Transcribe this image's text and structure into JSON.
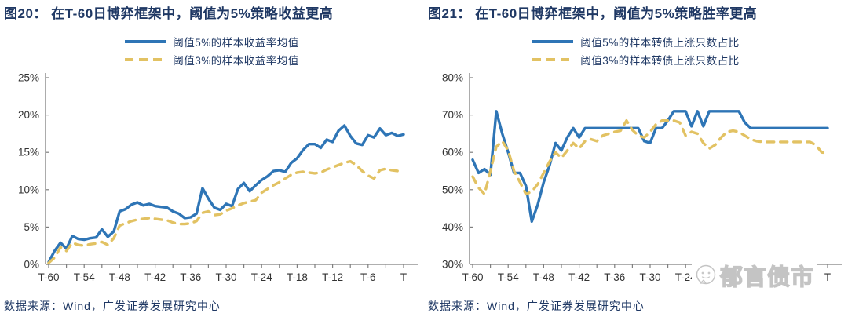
{
  "colors": {
    "navy": "#1F3864",
    "blue": "#2E75B6",
    "gold": "#E2C263",
    "axis": "#7F7F7F",
    "tick_text": "#333333",
    "watermark_gray": "#C4C4C4"
  },
  "panels": [
    {
      "title": "图20： 在T-60日博弈框架中，阈值为5%策略收益更高",
      "source": "数据来源：Wind，广发证券发展研究中心",
      "chart_data": {
        "type": "line",
        "title": "在T-60日博弈框架中，阈值为5%策略收益更高",
        "x_points": 61,
        "x_range": [
          "T-60",
          "T"
        ],
        "x_tick_labels": [
          "T-60",
          "T-54",
          "T-48",
          "T-42",
          "T-36",
          "T-30",
          "T-24",
          "T-18",
          "T-12",
          "T-6",
          "T"
        ],
        "ylim": [
          0,
          25
        ],
        "y_tick_step": 5,
        "y_tick_labels": [
          "0%",
          "5%",
          "10%",
          "15%",
          "20%",
          "25%"
        ],
        "grid": false,
        "legend_position": "top",
        "series": [
          {
            "name": "阈值5%的样本收益率均值",
            "style": "solid",
            "color": "#2E75B6",
            "unit": "%",
            "values": [
              0.3,
              1.8,
              2.9,
              2.1,
              3.8,
              3.4,
              3.3,
              3.5,
              3.6,
              4.7,
              3.7,
              4.4,
              7.1,
              7.4,
              8.0,
              8.3,
              7.9,
              8.1,
              7.8,
              7.7,
              7.6,
              7.1,
              6.8,
              6.2,
              6.3,
              6.8,
              10.2,
              8.8,
              7.6,
              7.3,
              8.1,
              7.8,
              10.1,
              10.9,
              9.8,
              10.6,
              11.3,
              11.8,
              12.5,
              12.6,
              12.4,
              13.6,
              14.2,
              15.3,
              16.1,
              16.1,
              15.6,
              16.7,
              16.4,
              17.9,
              18.6,
              17.2,
              16.2,
              16.0,
              17.3,
              17.0,
              18.2,
              17.3,
              17.6,
              17.2,
              17.4
            ]
          },
          {
            "name": "阈值3%的样本收益率均值",
            "style": "dashed",
            "color": "#E2C263",
            "unit": "%",
            "values": [
              0.2,
              0.9,
              2.3,
              1.8,
              2.9,
              2.6,
              2.5,
              2.7,
              2.8,
              3.0,
              2.6,
              3.5,
              5.2,
              5.5,
              5.8,
              6.0,
              6.1,
              6.2,
              6.1,
              6.0,
              5.9,
              5.6,
              5.4,
              5.4,
              5.5,
              5.8,
              6.9,
              7.1,
              6.6,
              6.7,
              7.2,
              7.5,
              7.9,
              8.2,
              8.4,
              8.6,
              9.6,
              10.1,
              10.6,
              11.0,
              11.5,
              12.0,
              12.3,
              12.4,
              12.3,
              12.2,
              12.3,
              12.7,
              13.0,
              13.3,
              13.6,
              13.8,
              13.3,
              12.5,
              11.9,
              11.5,
              12.6,
              12.8,
              12.6,
              12.5,
              12.4
            ]
          }
        ]
      }
    },
    {
      "title": "图21： 在T-60日博弈框架中，阈值为5%策略胜率更高",
      "source": "数据来源：Wind，广发证券发展研究中心",
      "watermark": "郁言债市",
      "chart_data": {
        "type": "line",
        "title": "在T-60日博弈框架中，阈值为5%策略胜率更高",
        "x_points": 61,
        "x_range": [
          "T-60",
          "T"
        ],
        "x_tick_labels": [
          "T-60",
          "T-54",
          "T-48",
          "T-42",
          "T-36",
          "T-30",
          "T-24",
          "T-18",
          "T-12",
          "T-6",
          "T"
        ],
        "ylim": [
          30,
          80
        ],
        "y_tick_step": 10,
        "y_tick_labels": [
          "30%",
          "40%",
          "50%",
          "60%",
          "70%",
          "80%"
        ],
        "grid": false,
        "legend_position": "top",
        "series": [
          {
            "name": "阈值5%的样本转债上涨只数占比",
            "style": "solid",
            "color": "#2E75B6",
            "unit": "%",
            "values": [
              58,
              54.5,
              55.5,
              54,
              71,
              65,
              60,
              54.5,
              54.5,
              51,
              41.5,
              46,
              52,
              56.5,
              62.5,
              60.5,
              64,
              66.5,
              64,
              66.5,
              66.5,
              66.5,
              66.5,
              66.5,
              66.5,
              66.5,
              66.5,
              66.5,
              66.5,
              63,
              62.5,
              66.5,
              66.5,
              68.5,
              71,
              71,
              71,
              67,
              71,
              67,
              71,
              71,
              71,
              71,
              71,
              71,
              68,
              66.5,
              66.5,
              66.5,
              66.5,
              66.5,
              66.5,
              66.5,
              66.5,
              66.5,
              66.5,
              66.5,
              66.5,
              66.5,
              66.5
            ]
          },
          {
            "name": "阈值3%的样本转债上涨只数占比",
            "style": "dashed",
            "color": "#E2C263",
            "unit": "%",
            "values": [
              53.5,
              50.5,
              48.8,
              55,
              61.5,
              63,
              60.5,
              55,
              52,
              48.8,
              49.5,
              51.5,
              54.5,
              57.5,
              60,
              58.5,
              60.5,
              62.5,
              61,
              63,
              63.5,
              63,
              64.5,
              65,
              65.5,
              65.8,
              68.5,
              66,
              64.5,
              64,
              65.5,
              67.5,
              68.5,
              68.5,
              68.5,
              68,
              64.5,
              65.5,
              65,
              62.5,
              61,
              62,
              64,
              65.5,
              65.8,
              65.5,
              64.5,
              63.5,
              63,
              62.8,
              62.8,
              62.8,
              62.8,
              62.8,
              62.8,
              62.8,
              62.8,
              62.8,
              62,
              60,
              59.8
            ]
          }
        ]
      }
    }
  ]
}
